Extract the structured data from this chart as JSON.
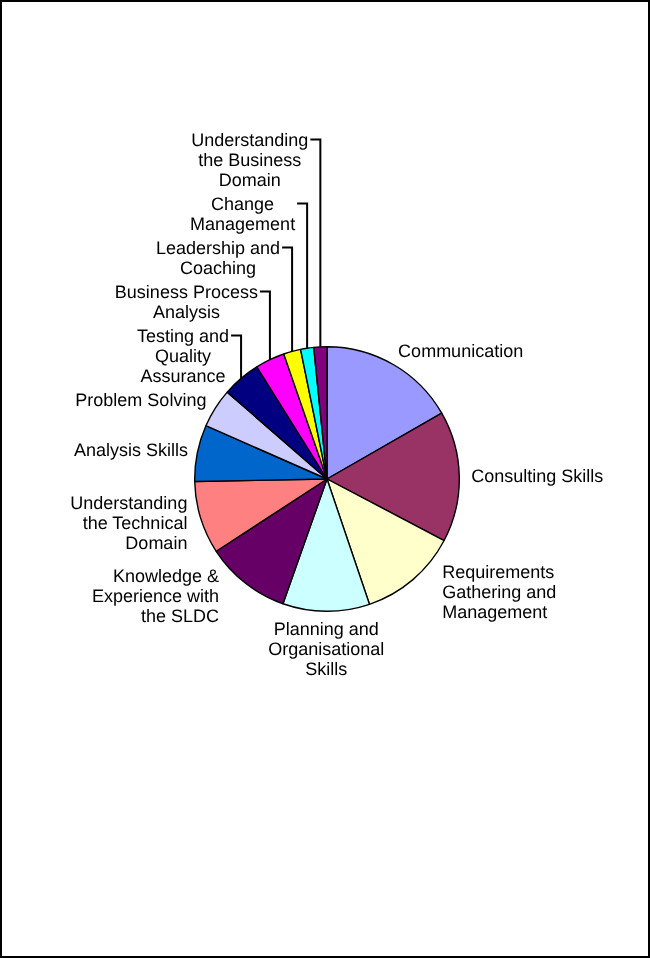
{
  "chart_data": {
    "type": "pie",
    "legend": false,
    "categories": [
      "Communication",
      "Consulting Skills",
      "Requirements Gathering and Management",
      "Planning and Organisational Skills",
      "Knowledge & Experience with the SLDC",
      "Understanding the Technical Domain",
      "Analysis Skills",
      "Problem Solving",
      "Testing and Quality Assurance",
      "Business Process Analysis",
      "Leadership and Coaching",
      "Change Management",
      "Understanding the Business Domain"
    ],
    "values": [
      16.7,
      16,
      12.1,
      10.6,
      10.4,
      8.9,
      6.9,
      4.8,
      4.7,
      3.6,
      2.1,
      1.6,
      1.6
    ],
    "colors": [
      "#9999ff",
      "#993366",
      "#ffffcc",
      "#ccffff",
      "#660066",
      "#ff8080",
      "#0066cc",
      "#ccccff",
      "#000080",
      "#ff00ff",
      "#ffff00",
      "#00ffff",
      "#800080"
    ]
  }
}
